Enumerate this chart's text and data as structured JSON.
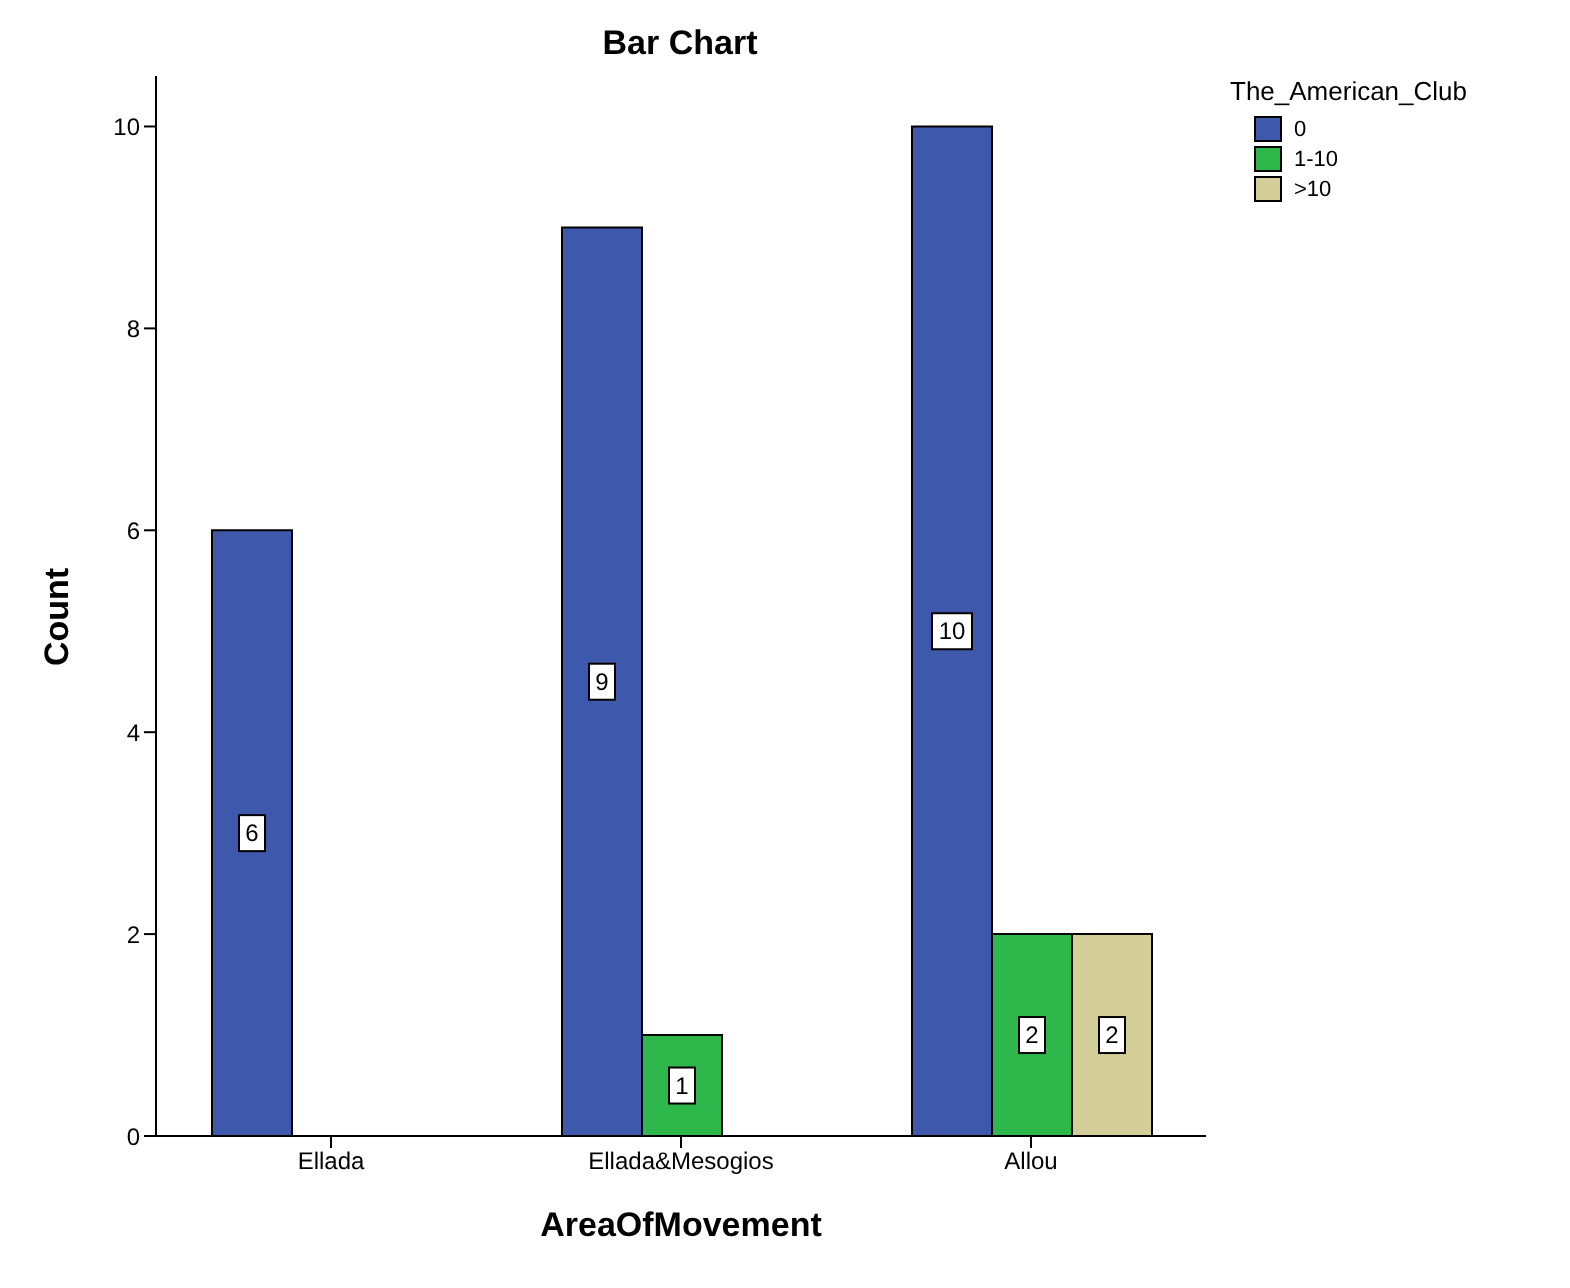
{
  "chart_data": {
    "type": "bar",
    "title": "Bar Chart",
    "xlabel": "AreaOfMovement",
    "ylabel": "Count",
    "legend_title": "The_American_Club",
    "categories": [
      "Ellada",
      "Ellada&Mesogios",
      "Allou"
    ],
    "series": [
      {
        "name": "0",
        "color": "#3e58ac",
        "values": [
          6,
          9,
          10
        ]
      },
      {
        "name": "1-10",
        "color": "#2eb84b",
        "values": [
          null,
          1,
          2
        ]
      },
      {
        "name": ">10",
        "color": "#d4cf98",
        "values": [
          null,
          null,
          2
        ]
      }
    ],
    "ylim": [
      0,
      10.5
    ],
    "yticks": [
      0,
      2,
      4,
      6,
      8,
      10
    ],
    "grid": false,
    "legend": "top right",
    "data_labels": true
  }
}
